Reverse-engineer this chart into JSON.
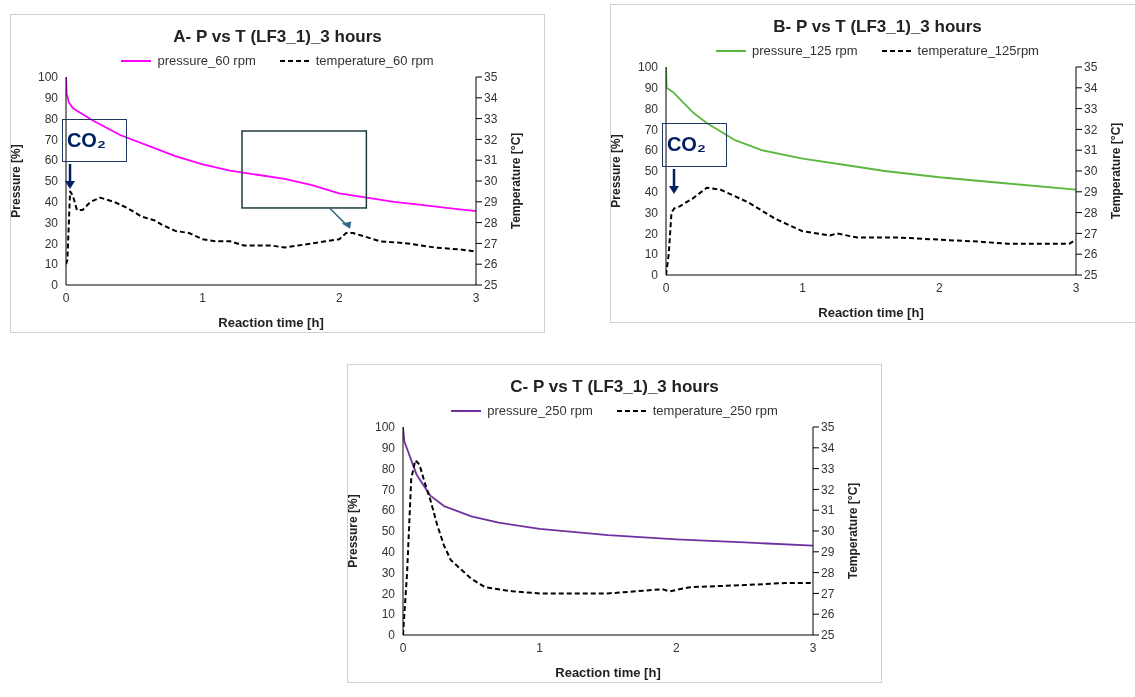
{
  "chart_data": [
    {
      "type": "line",
      "title": "A- P vs T (LF3_1)_3 hours",
      "xlabel": "Reaction time [h]",
      "ylabel": "Pressure [%]",
      "y2label": "Temperature [°C]",
      "xlim": [
        0,
        3
      ],
      "xticks": [
        0,
        1,
        2,
        3
      ],
      "ylim": [
        0,
        100
      ],
      "yticks": [
        0,
        10,
        20,
        30,
        40,
        50,
        60,
        70,
        80,
        90,
        100
      ],
      "y2lim": [
        25,
        35
      ],
      "y2ticks": [
        25,
        26,
        27,
        28,
        29,
        30,
        31,
        32,
        33,
        34,
        35
      ],
      "legend": "top",
      "marker": "none",
      "annotations": [
        "CO₂"
      ],
      "series": [
        {
          "name": "pressure_60 rpm",
          "color": "#ff00ff",
          "line_style": "solid",
          "x": [
            0,
            0.005,
            0.02,
            0.05,
            0.2,
            0.4,
            0.6,
            0.8,
            1.0,
            1.2,
            1.4,
            1.6,
            1.8,
            1.95,
            2.0,
            2.2,
            2.4,
            2.6,
            2.8,
            3
          ],
          "values": [
            100,
            92,
            88,
            85,
            79,
            72,
            67,
            62,
            58,
            55,
            53,
            51,
            48,
            45,
            44,
            42,
            40,
            38.5,
            37,
            35.5
          ]
        },
        {
          "name": "temperature_60 rpm",
          "color": "#000000",
          "line_style": "dashed",
          "axis": "y2",
          "x": [
            0,
            0.01,
            0.03,
            0.05,
            0.08,
            0.12,
            0.18,
            0.25,
            0.35,
            0.45,
            0.55,
            0.65,
            0.7,
            0.8,
            0.9,
            1.0,
            1.1,
            1.2,
            1.3,
            1.5,
            1.6,
            1.7,
            1.8,
            1.9,
            2.0,
            2.05,
            2.1,
            2.2,
            2.3,
            2.5,
            2.7,
            2.9,
            3
          ],
          "values": [
            26,
            26.2,
            29.5,
            29.3,
            28.6,
            28.6,
            29.0,
            29.2,
            29.0,
            28.7,
            28.3,
            28.1,
            27.9,
            27.6,
            27.5,
            27.2,
            27.1,
            27.1,
            26.9,
            26.9,
            26.8,
            26.9,
            27.0,
            27.1,
            27.2,
            27.5,
            27.5,
            27.3,
            27.1,
            27.0,
            26.8,
            26.7,
            26.6
          ]
        }
      ]
    },
    {
      "type": "line",
      "title": "B- P vs T (LF3_1)_3 hours",
      "xlabel": "Reaction time [h]",
      "ylabel": "Pressure [%]",
      "y2label": "Temperature [°C]",
      "xlim": [
        0,
        3
      ],
      "xticks": [
        0,
        1,
        2,
        3
      ],
      "ylim": [
        0,
        100
      ],
      "yticks": [
        0,
        10,
        20,
        30,
        40,
        50,
        60,
        70,
        80,
        90,
        100
      ],
      "y2lim": [
        25,
        35
      ],
      "y2ticks": [
        25,
        26,
        27,
        28,
        29,
        30,
        31,
        32,
        33,
        34,
        35
      ],
      "legend": "top",
      "marker": "none",
      "annotations": [
        "CO₂"
      ],
      "series": [
        {
          "name": "pressure_125 rpm",
          "color": "#5cb73f",
          "line_style": "solid",
          "x": [
            0,
            0.005,
            0.05,
            0.2,
            0.3,
            0.5,
            0.7,
            1.0,
            1.3,
            1.6,
            2.0,
            2.5,
            3
          ],
          "values": [
            100,
            90,
            88,
            78,
            73,
            65,
            60,
            56,
            53,
            50,
            47,
            44,
            41
          ]
        },
        {
          "name": "temperature_125rpm",
          "color": "#000000",
          "line_style": "dashed",
          "axis": "y2",
          "x": [
            0,
            0.02,
            0.04,
            0.06,
            0.1,
            0.2,
            0.3,
            0.4,
            0.5,
            0.6,
            0.7,
            0.8,
            0.9,
            1.0,
            1.2,
            1.25,
            1.4,
            1.7,
            2.0,
            2.3,
            2.5,
            2.8,
            2.95,
            3
          ],
          "values": [
            25,
            26,
            28,
            28.2,
            28.3,
            28.7,
            29.2,
            29.1,
            28.8,
            28.5,
            28.1,
            27.7,
            27.4,
            27.1,
            26.9,
            27.0,
            26.8,
            26.8,
            26.7,
            26.6,
            26.5,
            26.5,
            26.5,
            26.7
          ]
        }
      ]
    },
    {
      "type": "line",
      "title": "C- P vs T (LF3_1)_3 hours",
      "xlabel": "Reaction time [h]",
      "ylabel": "Pressure [%]",
      "y2label": "Temperature [°C]",
      "xlim": [
        0,
        3
      ],
      "xticks": [
        0,
        1,
        2,
        3
      ],
      "ylim": [
        0,
        100
      ],
      "yticks": [
        0,
        10,
        20,
        30,
        40,
        50,
        60,
        70,
        80,
        90,
        100
      ],
      "y2lim": [
        25,
        35
      ],
      "y2ticks": [
        25,
        26,
        27,
        28,
        29,
        30,
        31,
        32,
        33,
        34,
        35
      ],
      "legend": "top",
      "marker": "none",
      "series": [
        {
          "name": "pressure_250 rpm",
          "color": "#7030a0",
          "line_style": "solid",
          "x": [
            0,
            0.01,
            0.1,
            0.2,
            0.3,
            0.5,
            0.7,
            1.0,
            1.5,
            2,
            2.5,
            3
          ],
          "values": [
            100,
            93,
            77,
            67,
            62,
            57,
            54,
            51,
            48,
            46,
            44.5,
            43
          ]
        },
        {
          "name": "temperature_250 rpm",
          "color": "#000000",
          "line_style": "dashed",
          "axis": "y2",
          "x": [
            0,
            0.03,
            0.06,
            0.09,
            0.12,
            0.16,
            0.2,
            0.25,
            0.3,
            0.35,
            0.45,
            0.5,
            0.6,
            0.8,
            1.0,
            1.5,
            1.9,
            1.95,
            2.1,
            2.5,
            2.8,
            3
          ],
          "values": [
            25,
            28,
            32.5,
            33.4,
            33.2,
            32.3,
            31.5,
            30.3,
            29.3,
            28.6,
            28.0,
            27.7,
            27.3,
            27.1,
            27.0,
            27.0,
            27.2,
            27.1,
            27.3,
            27.4,
            27.5,
            27.5
          ]
        }
      ]
    }
  ]
}
